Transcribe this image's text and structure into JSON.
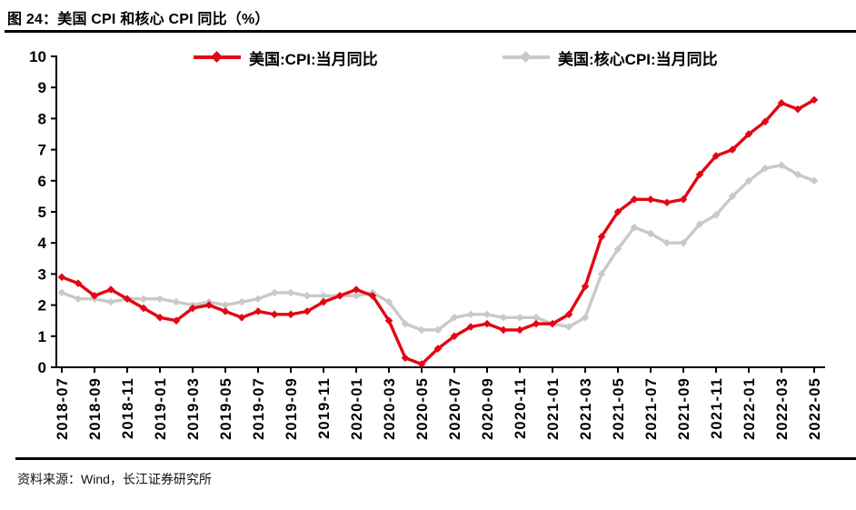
{
  "header": {
    "title": "图 24：美国 CPI 和核心 CPI 同比（%）"
  },
  "footer": {
    "source": "资料来源：Wind，长江证券研究所"
  },
  "colors": {
    "cpi_red": "#e30613",
    "core_gray": "#c9c9c9",
    "axis_black": "#000000"
  },
  "chart_data": {
    "type": "line",
    "title": "图 24：美国 CPI 和核心 CPI 同比（%）",
    "xlabel": "",
    "ylabel": "",
    "ylim": [
      0,
      10
    ],
    "ytick_interval": 1,
    "ytick_labels": [
      "0",
      "1",
      "2",
      "3",
      "4",
      "5",
      "6",
      "7",
      "8",
      "9",
      "10"
    ],
    "xtick_every": 2,
    "visible_xticks": [
      "2018-07",
      "2018-09",
      "2018-11",
      "2019-01",
      "2019-03",
      "2019-05",
      "2019-07",
      "2019-09",
      "2019-11",
      "2020-01",
      "2020-03",
      "2020-05",
      "2020-07",
      "2020-09",
      "2020-11",
      "2021-01",
      "2021-03",
      "2021-05",
      "2021-07",
      "2021-09",
      "2021-11",
      "2022-01",
      "2022-03",
      "2022-05"
    ],
    "grid": false,
    "marker": "diamond",
    "legend_position": "top-center",
    "x": [
      "2018-07",
      "2018-08",
      "2018-09",
      "2018-10",
      "2018-11",
      "2018-12",
      "2019-01",
      "2019-02",
      "2019-03",
      "2019-04",
      "2019-05",
      "2019-06",
      "2019-07",
      "2019-08",
      "2019-09",
      "2019-10",
      "2019-11",
      "2019-12",
      "2020-01",
      "2020-02",
      "2020-03",
      "2020-04",
      "2020-05",
      "2020-06",
      "2020-07",
      "2020-08",
      "2020-09",
      "2020-10",
      "2020-11",
      "2020-12",
      "2021-01",
      "2021-02",
      "2021-03",
      "2021-04",
      "2021-05",
      "2021-06",
      "2021-07",
      "2021-08",
      "2021-09",
      "2021-10",
      "2021-11",
      "2021-12",
      "2022-01",
      "2022-02",
      "2022-03",
      "2022-04",
      "2022-05"
    ],
    "series": [
      {
        "id": "cpi",
        "name": "美国:CPI:当月同比",
        "color": "#e30613",
        "values": [
          2.9,
          2.7,
          2.3,
          2.5,
          2.2,
          1.9,
          1.6,
          1.5,
          1.9,
          2.0,
          1.8,
          1.6,
          1.8,
          1.7,
          1.7,
          1.8,
          2.1,
          2.3,
          2.5,
          2.3,
          1.5,
          0.3,
          0.1,
          0.6,
          1.0,
          1.3,
          1.4,
          1.2,
          1.2,
          1.4,
          1.4,
          1.7,
          2.6,
          4.2,
          5.0,
          5.4,
          5.4,
          5.3,
          5.4,
          6.2,
          6.8,
          7.0,
          7.5,
          7.9,
          8.5,
          8.3,
          8.6
        ]
      },
      {
        "id": "core-cpi",
        "name": "美国:核心CPI:当月同比",
        "color": "#c9c9c9",
        "values": [
          2.4,
          2.2,
          2.2,
          2.1,
          2.2,
          2.2,
          2.2,
          2.1,
          2.0,
          2.1,
          2.0,
          2.1,
          2.2,
          2.4,
          2.4,
          2.3,
          2.3,
          2.3,
          2.3,
          2.4,
          2.1,
          1.4,
          1.2,
          1.2,
          1.6,
          1.7,
          1.7,
          1.6,
          1.6,
          1.6,
          1.4,
          1.3,
          1.6,
          3.0,
          3.8,
          4.5,
          4.3,
          4.0,
          4.0,
          4.6,
          4.9,
          5.5,
          6.0,
          6.4,
          6.5,
          6.2,
          6.0
        ]
      }
    ]
  }
}
